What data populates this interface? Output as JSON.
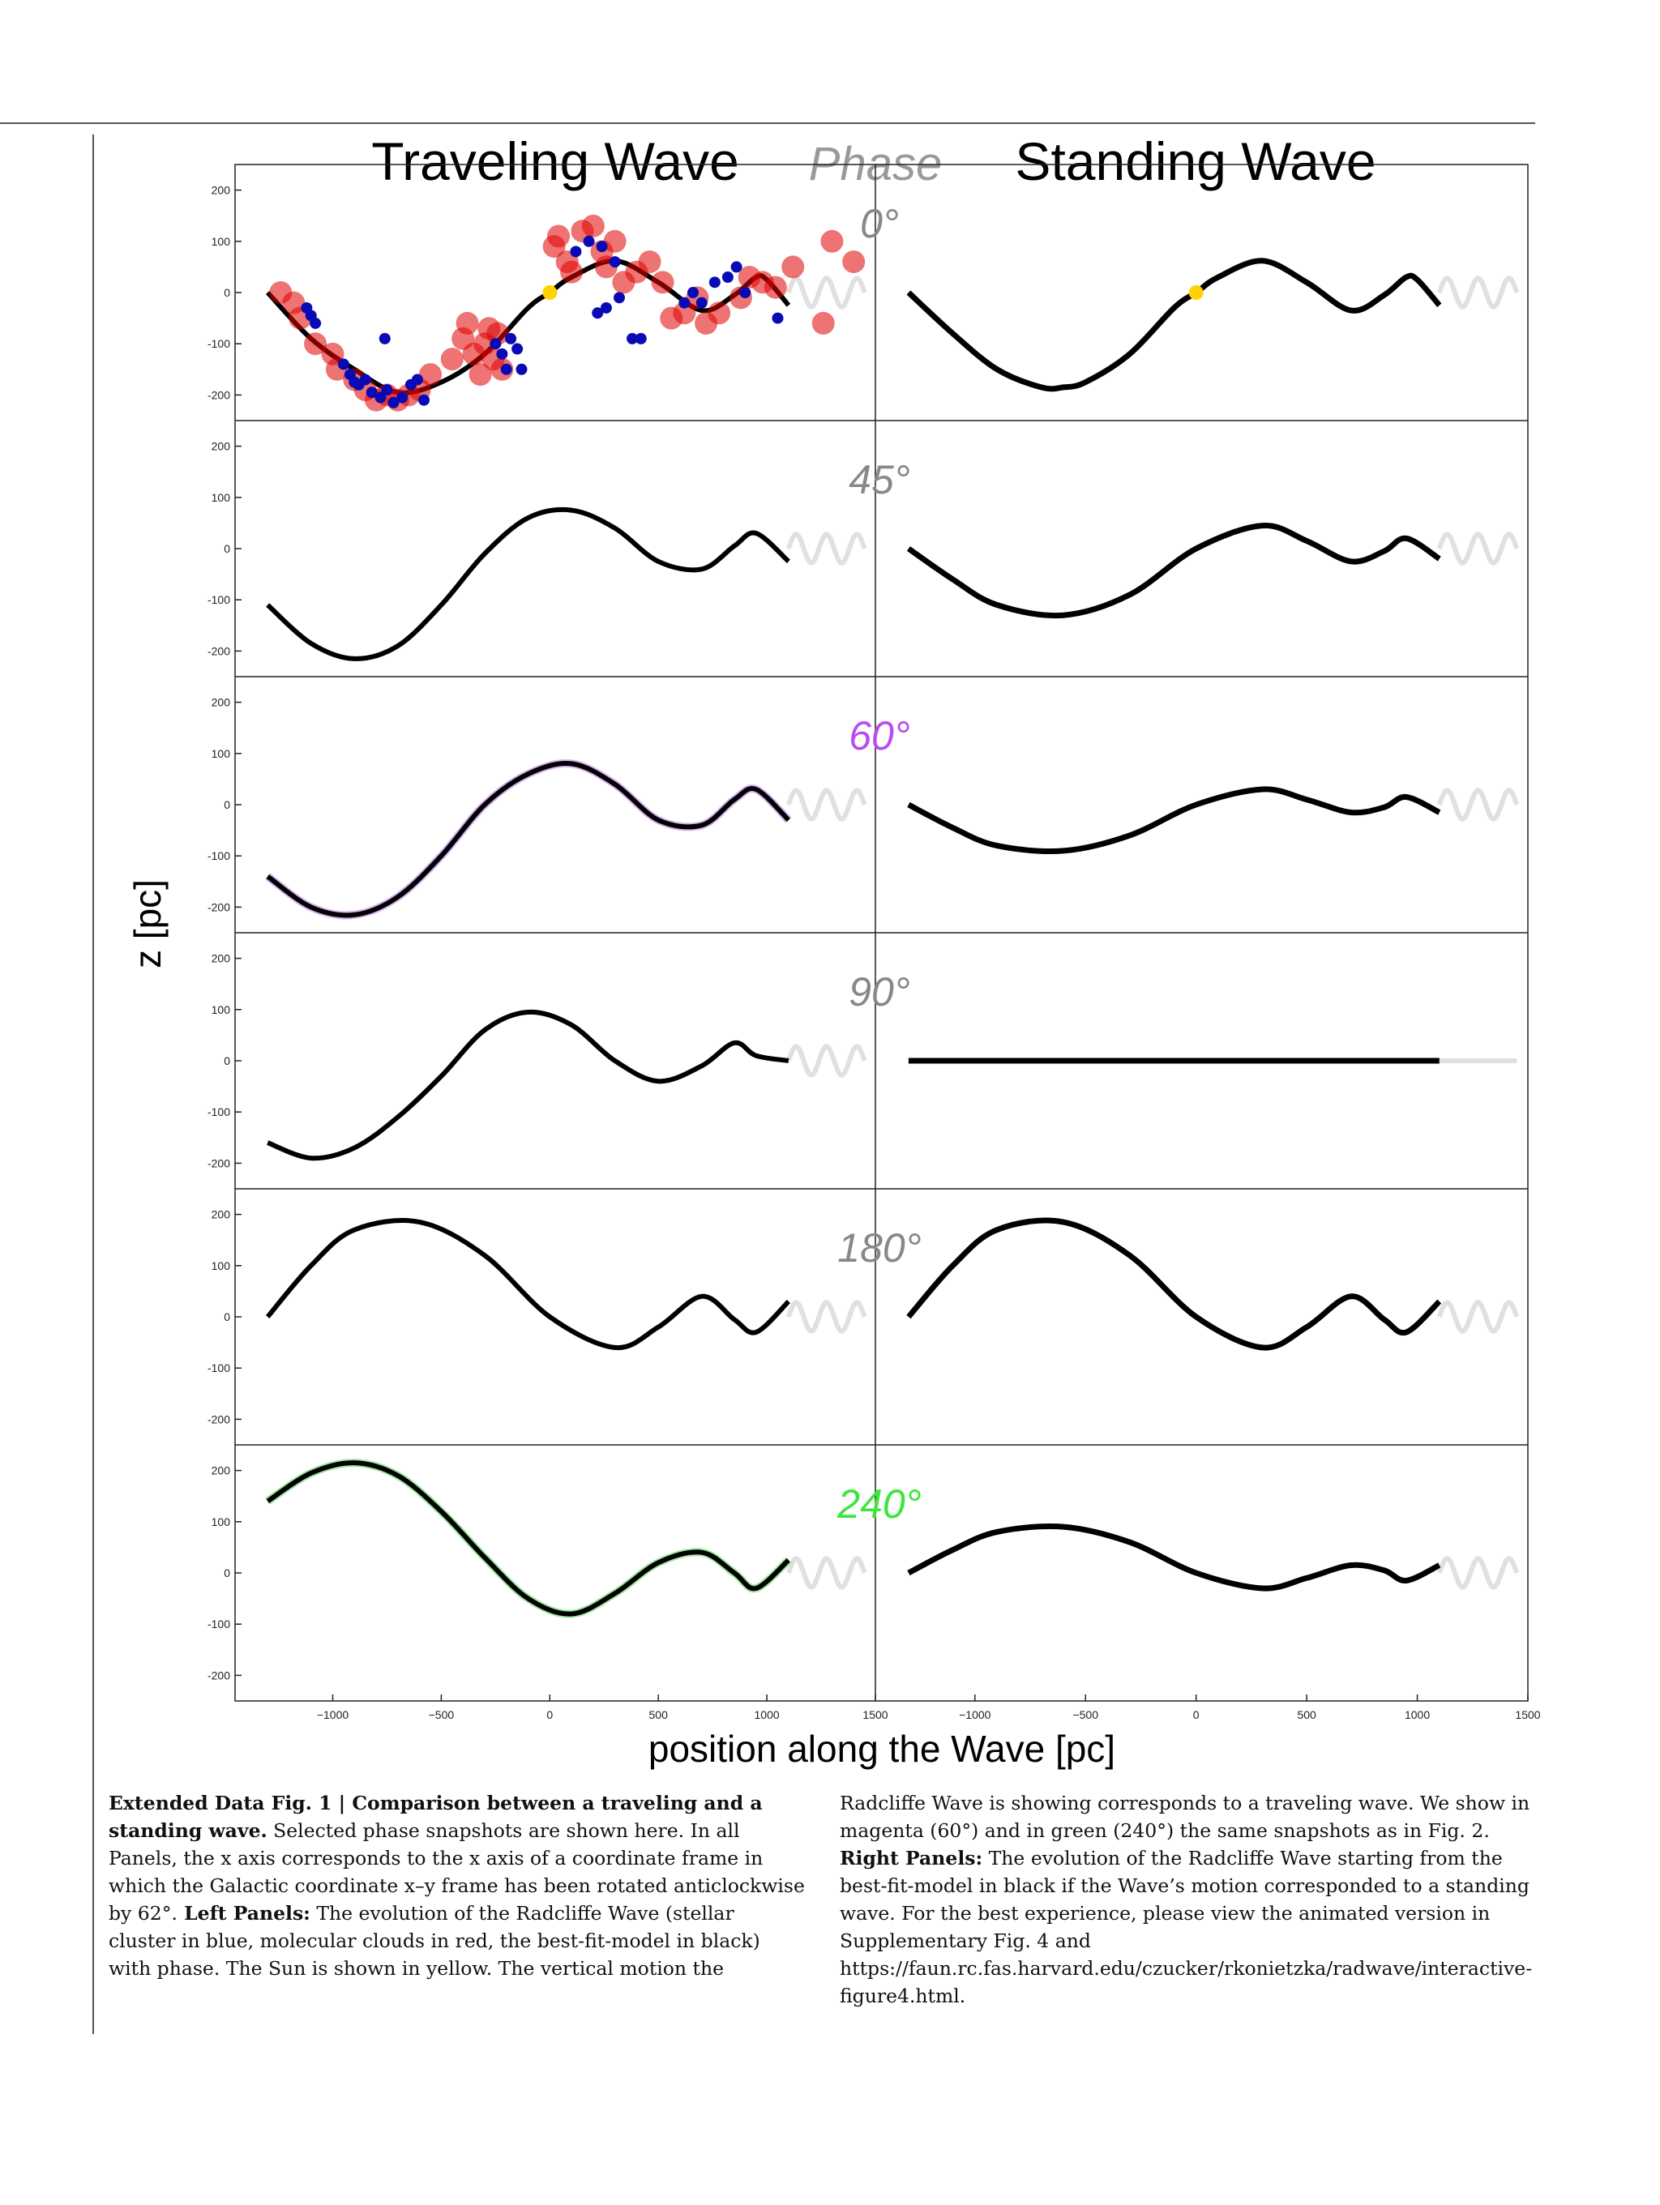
{
  "figure": {
    "title_left": "Traveling Wave",
    "title_center": "Phase",
    "title_right": "Standing Wave",
    "ylabel": "z [pc]",
    "xlabel": "position along the Wave [pc]",
    "phases": [
      "0°",
      "45°",
      "60°",
      "90°",
      "180°",
      "240°"
    ],
    "phase_colors": [
      "#888888",
      "#888888",
      "#b94cf0",
      "#888888",
      "#888888",
      "#3de53d"
    ],
    "y_ticks": [
      "200",
      "100",
      "0",
      "-100",
      "-200"
    ],
    "x_ticks_left": [
      "−1000",
      "−500",
      "0",
      "500",
      "1000",
      "1500"
    ],
    "x_ticks_right": [
      "−1000",
      "−500",
      "0",
      "500",
      "1000",
      "1500"
    ]
  },
  "chart_data": {
    "type": "line",
    "xlabel": "position along the Wave [pc]",
    "ylabel": "z [pc]",
    "xlim": [
      -1450,
      1500
    ],
    "ylim": [
      -250,
      250
    ],
    "model_x_range": [
      -1300,
      1100
    ],
    "extension_x_range": [
      1100,
      1450
    ],
    "phases_deg": [
      0,
      45,
      60,
      90,
      180,
      240
    ],
    "series": [
      {
        "panel": "traveling",
        "phase": "0°",
        "x": [
          -1300,
          -1100,
          -900,
          -700,
          -500,
          -300,
          -100,
          0,
          100,
          300,
          500,
          700,
          850,
          950,
          1000,
          1100
        ],
        "y": [
          0,
          -90,
          -150,
          -195,
          -175,
          -120,
          -30,
          0,
          30,
          62,
          20,
          -35,
          -5,
          30,
          25,
          -25
        ]
      },
      {
        "panel": "standing",
        "phase": "0°",
        "x": [
          -1300,
          -1100,
          -900,
          -700,
          -600,
          -500,
          -300,
          -100,
          0,
          100,
          300,
          500,
          700,
          850,
          950,
          1000,
          1100
        ],
        "y": [
          0,
          -80,
          -150,
          -185,
          -185,
          -175,
          -120,
          -30,
          0,
          30,
          62,
          20,
          -35,
          -5,
          30,
          25,
          -25
        ]
      },
      {
        "panel": "traveling",
        "phase": "45°",
        "x": [
          -1300,
          -1100,
          -900,
          -700,
          -500,
          -300,
          -100,
          100,
          300,
          500,
          700,
          850,
          950,
          1100
        ],
        "y": [
          -110,
          -185,
          -215,
          -190,
          -110,
          -10,
          60,
          75,
          40,
          -25,
          -40,
          5,
          30,
          -25
        ]
      },
      {
        "panel": "standing",
        "phase": "45°",
        "x": [
          -1300,
          -1100,
          -900,
          -600,
          -300,
          0,
          300,
          500,
          700,
          850,
          950,
          1100
        ],
        "y": [
          0,
          -60,
          -110,
          -130,
          -90,
          0,
          45,
          15,
          -25,
          -5,
          20,
          -20
        ]
      },
      {
        "panel": "traveling",
        "phase": "60°",
        "x": [
          -1300,
          -1100,
          -900,
          -700,
          -500,
          -300,
          -100,
          100,
          300,
          500,
          700,
          850,
          950,
          1100
        ],
        "y": [
          -140,
          -200,
          -215,
          -180,
          -100,
          0,
          60,
          80,
          40,
          -30,
          -40,
          10,
          30,
          -30
        ]
      },
      {
        "panel": "standing",
        "phase": "60°",
        "x": [
          -1300,
          -1100,
          -900,
          -600,
          -300,
          0,
          300,
          500,
          700,
          850,
          950,
          1100
        ],
        "y": [
          0,
          -45,
          -80,
          -90,
          -60,
          0,
          30,
          10,
          -15,
          -5,
          15,
          -15
        ]
      },
      {
        "panel": "traveling",
        "phase": "90°",
        "x": [
          -1300,
          -1100,
          -900,
          -700,
          -500,
          -300,
          -100,
          100,
          300,
          500,
          700,
          850,
          950,
          1100
        ],
        "y": [
          -160,
          -190,
          -170,
          -110,
          -30,
          60,
          95,
          70,
          0,
          -40,
          -10,
          35,
          10,
          0
        ]
      },
      {
        "panel": "standing",
        "phase": "90°",
        "x": [
          -1300,
          1100
        ],
        "y": [
          0,
          0
        ]
      },
      {
        "panel": "traveling",
        "phase": "180°",
        "x": [
          -1300,
          -1100,
          -900,
          -600,
          -300,
          0,
          300,
          500,
          700,
          850,
          950,
          1100
        ],
        "y": [
          0,
          100,
          170,
          185,
          120,
          0,
          -60,
          -20,
          40,
          -5,
          -30,
          30
        ]
      },
      {
        "panel": "standing",
        "phase": "180°",
        "x": [
          -1300,
          -1100,
          -900,
          -600,
          -300,
          0,
          300,
          500,
          700,
          850,
          950,
          1100
        ],
        "y": [
          0,
          100,
          170,
          185,
          120,
          0,
          -60,
          -20,
          40,
          -5,
          -30,
          30
        ]
      },
      {
        "panel": "traveling",
        "phase": "240°",
        "x": [
          -1300,
          -1100,
          -900,
          -700,
          -500,
          -300,
          -100,
          100,
          300,
          500,
          700,
          850,
          950,
          1100
        ],
        "y": [
          140,
          195,
          215,
          190,
          120,
          30,
          -50,
          -80,
          -40,
          20,
          40,
          0,
          -30,
          25
        ]
      },
      {
        "panel": "standing",
        "phase": "240°",
        "x": [
          -1300,
          -1100,
          -900,
          -600,
          -300,
          0,
          300,
          500,
          700,
          850,
          950,
          1100
        ],
        "y": [
          0,
          45,
          80,
          90,
          60,
          0,
          -30,
          -10,
          15,
          5,
          -15,
          15
        ]
      }
    ],
    "sun": {
      "x": 0,
      "y": 0,
      "color": "#ffd200",
      "phase": "0°"
    },
    "stellar_clusters": {
      "color": "#0a0ab4",
      "points": [
        [
          -1120,
          -30
        ],
        [
          -1100,
          -45
        ],
        [
          -1080,
          -60
        ],
        [
          -950,
          -140
        ],
        [
          -920,
          -160
        ],
        [
          -900,
          -175
        ],
        [
          -880,
          -180
        ],
        [
          -850,
          -170
        ],
        [
          -820,
          -195
        ],
        [
          -780,
          -205
        ],
        [
          -750,
          -190
        ],
        [
          -720,
          -215
        ],
        [
          -680,
          -205
        ],
        [
          -640,
          -180
        ],
        [
          -610,
          -170
        ],
        [
          -580,
          -210
        ],
        [
          -760,
          -90
        ],
        [
          -250,
          -100
        ],
        [
          -220,
          -120
        ],
        [
          -200,
          -150
        ],
        [
          -180,
          -90
        ],
        [
          -150,
          -110
        ],
        [
          -130,
          -150
        ],
        [
          120,
          80
        ],
        [
          180,
          100
        ],
        [
          240,
          90
        ],
        [
          300,
          60
        ],
        [
          320,
          -10
        ],
        [
          260,
          -30
        ],
        [
          220,
          -40
        ],
        [
          380,
          -90
        ],
        [
          420,
          -90
        ],
        [
          620,
          -20
        ],
        [
          660,
          0
        ],
        [
          700,
          -20
        ],
        [
          760,
          20
        ],
        [
          820,
          30
        ],
        [
          860,
          50
        ],
        [
          900,
          0
        ],
        [
          1050,
          -50
        ]
      ]
    },
    "molecular_clouds": {
      "color": "#e00000",
      "points": [
        [
          -1240,
          0
        ],
        [
          -1180,
          -20
        ],
        [
          -1150,
          -50
        ],
        [
          -1080,
          -100
        ],
        [
          -1000,
          -120
        ],
        [
          -980,
          -150
        ],
        [
          -900,
          -170
        ],
        [
          -850,
          -190
        ],
        [
          -800,
          -210
        ],
        [
          -750,
          -200
        ],
        [
          -700,
          -210
        ],
        [
          -650,
          -200
        ],
        [
          -600,
          -190
        ],
        [
          -550,
          -160
        ],
        [
          -450,
          -130
        ],
        [
          -400,
          -90
        ],
        [
          -380,
          -60
        ],
        [
          -350,
          -120
        ],
        [
          -320,
          -160
        ],
        [
          -300,
          -100
        ],
        [
          -280,
          -70
        ],
        [
          -260,
          -130
        ],
        [
          -240,
          -80
        ],
        [
          -220,
          -150
        ],
        [
          20,
          90
        ],
        [
          40,
          110
        ],
        [
          80,
          60
        ],
        [
          100,
          40
        ],
        [
          150,
          120
        ],
        [
          200,
          130
        ],
        [
          240,
          80
        ],
        [
          260,
          50
        ],
        [
          300,
          100
        ],
        [
          340,
          20
        ],
        [
          400,
          40
        ],
        [
          460,
          60
        ],
        [
          520,
          20
        ],
        [
          560,
          -50
        ],
        [
          620,
          -40
        ],
        [
          680,
          -10
        ],
        [
          720,
          -60
        ],
        [
          780,
          -40
        ],
        [
          880,
          -10
        ],
        [
          920,
          30
        ],
        [
          980,
          20
        ],
        [
          1040,
          10
        ],
        [
          1120,
          50
        ],
        [
          1260,
          -60
        ],
        [
          1300,
          100
        ],
        [
          1400,
          60
        ]
      ]
    }
  },
  "caption": {
    "label": "Extended Data Fig. 1 | Comparison between a traveling and a standing wave.",
    "left": " Selected phase snapshots are shown here. In all Panels, the x axis corresponds to the x axis of a coordinate frame in which the Galactic coordinate x–y frame has been rotated anticlockwise by 62°.",
    "left_bold2": " Left Panels:",
    "left_rest": " The evolution of the Radcliffe Wave (stellar cluster in blue, molecular clouds in red, the best-fit-model in black) with phase. The Sun is shown in yellow. The vertical motion the",
    "right": "Radcliffe Wave is showing corresponds to a traveling wave. We show in magenta (60°) and in green (240°) the same snapshots as in Fig. 2.",
    "right_bold": " Right Panels:",
    "right_rest": " The evolution of the Radcliffe Wave starting from the best-fit-model in black if the Wave’s motion corresponded to a standing wave. For the best experience, please view the animated version in Supplementary Fig. 4 and https://faun.rc.fas.harvard.edu/czucker/rkonietzka/radwave/interactive-figure4.html."
  }
}
